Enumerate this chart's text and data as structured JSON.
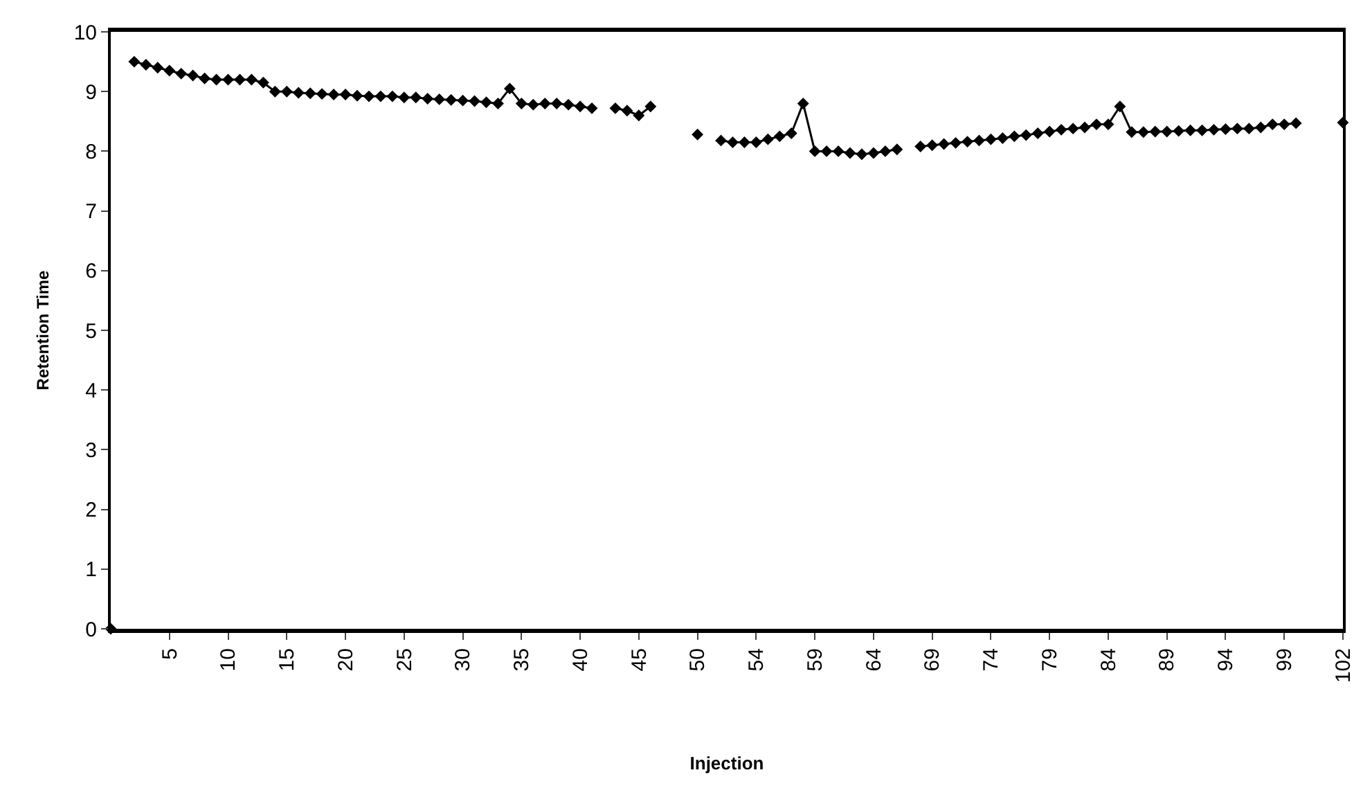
{
  "chart_data": {
    "type": "line",
    "xlabel": "Injection",
    "ylabel": "Retention Time",
    "categories": [
      null,
      null,
      null,
      null,
      null,
      "5",
      null,
      null,
      null,
      null,
      "10",
      null,
      null,
      null,
      null,
      "15",
      null,
      null,
      null,
      null,
      "20",
      null,
      null,
      null,
      null,
      "25",
      null,
      null,
      null,
      null,
      "30",
      null,
      null,
      null,
      null,
      "35",
      null,
      null,
      null,
      null,
      "40",
      null,
      null,
      null,
      null,
      "45",
      null,
      null,
      null,
      null,
      "50",
      null,
      null,
      null,
      null,
      "54",
      null,
      null,
      null,
      null,
      "59",
      null,
      null,
      null,
      null,
      "64",
      null,
      null,
      null,
      null,
      "69",
      null,
      null,
      null,
      null,
      "74",
      null,
      null,
      null,
      null,
      "79",
      null,
      null,
      null,
      null,
      "84",
      null,
      null,
      null,
      null,
      "89",
      null,
      null,
      null,
      null,
      "94",
      null,
      null,
      null,
      null,
      "99",
      null,
      null,
      null,
      null,
      "102"
    ],
    "series": [
      {
        "color": "#000000",
        "values": [
          0,
          null,
          9.5,
          9.45,
          9.4,
          9.35,
          9.3,
          9.27,
          9.22,
          9.2,
          9.2,
          9.2,
          9.2,
          9.15,
          9.0,
          9.0,
          8.98,
          8.97,
          8.96,
          8.95,
          8.95,
          8.93,
          8.92,
          8.92,
          8.92,
          8.9,
          8.9,
          8.88,
          8.87,
          8.86,
          8.85,
          8.84,
          8.82,
          8.8,
          9.05,
          8.8,
          8.78,
          8.8,
          8.8,
          8.78,
          8.75,
          8.72,
          null,
          8.72,
          8.68,
          8.6,
          8.75,
          null,
          null,
          null,
          8.28,
          null,
          8.18,
          8.15,
          8.15,
          8.15,
          8.2,
          8.25,
          8.3,
          8.8,
          8.0,
          8.0,
          8.0,
          7.97,
          7.95,
          7.97,
          8.0,
          8.03,
          null,
          8.08,
          8.1,
          8.12,
          8.14,
          8.16,
          8.18,
          8.2,
          8.22,
          8.25,
          8.27,
          8.3,
          8.33,
          8.36,
          8.38,
          8.4,
          8.45,
          8.45,
          8.75,
          8.32,
          8.32,
          8.33,
          8.33,
          8.34,
          8.35,
          8.35,
          8.36,
          8.37,
          8.38,
          8.38,
          8.4,
          8.45,
          8.45,
          8.47,
          null,
          null,
          null,
          8.48
        ]
      }
    ],
    "ylim": [
      0,
      10
    ],
    "yticks": [
      0,
      1,
      2,
      3,
      4,
      5,
      6,
      7,
      8,
      9,
      10
    ],
    "legend": false,
    "marker": "diamond",
    "line_style": "solid"
  }
}
